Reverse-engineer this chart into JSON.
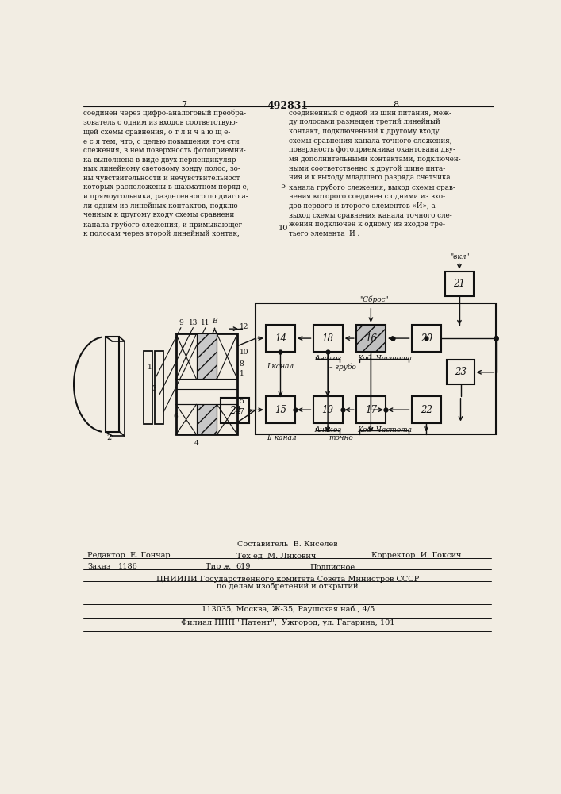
{
  "title": "492831",
  "page_left": "7",
  "page_right": "8",
  "bg_color": "#f2ede3",
  "text_color": "#111111",
  "text_top_left": "соединен через цифро-аналоговый преобра-\nзователь с одним из входов соответствую-\nщей схемы сравнения, о т л и ч а ю щ е-\nе с я тем, что, с целью повышения точ сти\nслежения, в нем поверхность фотоприемни-\nка выполнена в виде двух перпендикуляр-\nных линейному световому зонду полос, зо-\nны чувствительности и нечувствительност\nкоторых расположены в шахматном поряд е,\nи прямоугольника, разделенного по диаго а-\nли одним из линейных контактов, подклю-\nченным к другому входу схемы сравнени\nканала грубого слежения, и примыкающег\nк полосам через второй линейный контак,",
  "text_top_right": "соединенный с одной из шин питания, меж-\nду полосами размещен третий линейный\nконтакт, подключенный к другому входу\nсхемы сравнения канала точного слежения,\nповерхность фотоприемника окантована дву-\nмя дополнительными контактами, подключен-\nными соответственно к другой шине пита-\nния и к выходу младшего разряда счетчика\nканала грубого слежения, выход схемы срав-\nнения которого соединен с одними из вхо-\nдов первого и второго элементов «И», а\nвыход схемы сравнения канала точного сле-\nжения подключен к одному из входов тре-\nтьего элемента  И .",
  "line_num_5": "5",
  "line_num_10": "10",
  "footer_line1": "Составитель  В. Киселев",
  "footer_editor": "Редактор  Е. Гончар",
  "footer_tech_ed": "Тех ед  М. Ликович",
  "footer_corrector": "Корректор  И. Гоксич",
  "footer_order_label": "Заказ",
  "footer_order_num": "1186",
  "footer_tir_label": "Тир ж",
  "footer_tir_num": "619",
  "footer_podpisnoe": "Подписное",
  "footer_org": "ЦНИИПИ Государственного комитета Совета Министров СССР",
  "footer_org2": "по делам изобретений и открытий",
  "footer_addr1": "113035, Москва, Ж-35, Раушская наб., 4/5",
  "footer_addr2": "Филиал ПНП \"Патент\",  Ужгород, ул. Гагарина, 101"
}
